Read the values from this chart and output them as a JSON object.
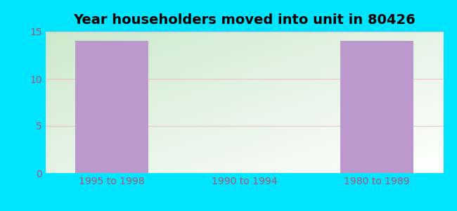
{
  "title": "Year householders moved into unit in 80426",
  "categories": [
    "1995 to 1998",
    "1990 to 1994",
    "1980 to 1989"
  ],
  "values": [
    14,
    0,
    14
  ],
  "bar_color": "#bb99cc",
  "ylim": [
    0,
    15
  ],
  "yticks": [
    0,
    5,
    10,
    15
  ],
  "background_outer": "#00e5ff",
  "background_inner_top_left": "#cce8cc",
  "background_inner_bottom_right": "#ffffff",
  "grid_color": "#f5c0c0",
  "title_fontsize": 14,
  "tick_fontsize": 10,
  "tick_color": "#aa5577"
}
